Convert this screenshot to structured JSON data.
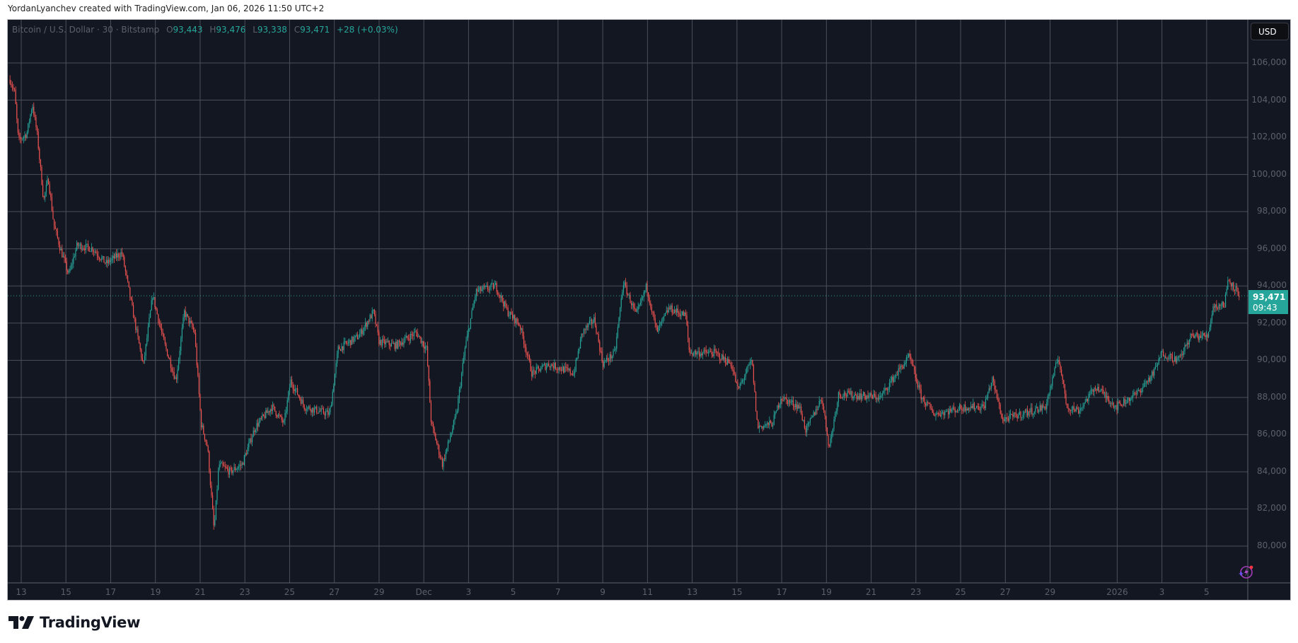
{
  "credit": "YordanLyanchev created with TradingView.com, Jan 06, 2026 11:50 UTC+2",
  "legend": {
    "symbol": "Bitcoin / U.S. Dollar · 30 · Bitstamp",
    "o_label": "O",
    "o": "93,443",
    "h_label": "H",
    "h": "93,476",
    "l_label": "L",
    "l": "93,338",
    "c_label": "C",
    "c": "93,471",
    "change": "+28 (+0.03%)"
  },
  "currency_button": "USD",
  "last_price": {
    "price": "93,471",
    "countdown": "09:43"
  },
  "logo_text": "TradingView",
  "colors": {
    "background": "#131722",
    "up": "#26a69a",
    "down": "#ef5350",
    "grid": "#4b4f5a",
    "axis_text": "#5d606b"
  },
  "icons": {
    "alert": "lightning-bolt-sparkle-icon",
    "logo": "tradingview-logo-icon"
  },
  "chart_data": {
    "type": "candlestick",
    "interval": "30",
    "grid": true,
    "ylim": [
      79000,
      107000
    ],
    "y_ticks": [
      "106,000",
      "104,000",
      "102,000",
      "100,000",
      "98,000",
      "96,000",
      "94,000",
      "92,000",
      "90,000",
      "88,000",
      "86,000",
      "84,000",
      "82,000",
      "80,000"
    ],
    "x_ticks": [
      "13",
      "15",
      "17",
      "19",
      "21",
      "23",
      "25",
      "27",
      "29",
      "Dec",
      "3",
      "5",
      "7",
      "9",
      "11",
      "13",
      "15",
      "17",
      "19",
      "21",
      "23",
      "25",
      "27",
      "29",
      "2026",
      "3",
      "5"
    ],
    "x_tick_dates": [
      "2025-11-13",
      "2025-11-15",
      "2025-11-17",
      "2025-11-19",
      "2025-11-21",
      "2025-11-23",
      "2025-11-25",
      "2025-11-27",
      "2025-11-29",
      "2025-12-01",
      "2025-12-03",
      "2025-12-05",
      "2025-12-07",
      "2025-12-09",
      "2025-12-11",
      "2025-12-13",
      "2025-12-15",
      "2025-12-17",
      "2025-12-19",
      "2025-12-21",
      "2025-12-23",
      "2025-12-25",
      "2025-12-27",
      "2025-12-29",
      "2026-01-01",
      "2026-01-03",
      "2026-01-05"
    ],
    "approx_close_path": [
      [
        "2025-11-12T12:00",
        105100
      ],
      [
        "2025-11-12T17:00",
        104400
      ],
      [
        "2025-11-12T21:00",
        101800
      ],
      [
        "2025-11-13T06:00",
        102200
      ],
      [
        "2025-11-13T12:00",
        103800
      ],
      [
        "2025-11-13T17:00",
        102200
      ],
      [
        "2025-11-14T00:00",
        98600
      ],
      [
        "2025-11-14T05:00",
        99800
      ],
      [
        "2025-11-14T11:00",
        97300
      ],
      [
        "2025-11-14T18:00",
        96000
      ],
      [
        "2025-11-15T03:00",
        94600
      ],
      [
        "2025-11-15T12:00",
        96200
      ],
      [
        "2025-11-16T05:00",
        96000
      ],
      [
        "2025-11-16T19:00",
        95200
      ],
      [
        "2025-11-17T12:00",
        95800
      ],
      [
        "2025-11-18T02:00",
        92000
      ],
      [
        "2025-11-18T11:00",
        89700
      ],
      [
        "2025-11-18T21:00",
        93500
      ],
      [
        "2025-11-19T09:00",
        91000
      ],
      [
        "2025-11-19T22:00",
        88900
      ],
      [
        "2025-11-20T07:00",
        92600
      ],
      [
        "2025-11-20T18:00",
        91500
      ],
      [
        "2025-11-21T01:00",
        86600
      ],
      [
        "2025-11-21T08:00",
        85300
      ],
      [
        "2025-11-21T15:00",
        80800
      ],
      [
        "2025-11-21T20:00",
        84400
      ],
      [
        "2025-11-22T08:00",
        84000
      ],
      [
        "2025-11-22T21:00",
        84400
      ],
      [
        "2025-11-23T11:00",
        86400
      ],
      [
        "2025-11-24T05:00",
        87500
      ],
      [
        "2025-11-24T18:00",
        86600
      ],
      [
        "2025-11-25T01:00",
        88900
      ],
      [
        "2025-11-25T16:00",
        87500
      ],
      [
        "2025-11-26T19:00",
        87100
      ],
      [
        "2025-11-27T04:00",
        90600
      ],
      [
        "2025-11-28T02:00",
        91300
      ],
      [
        "2025-11-28T18:00",
        92600
      ],
      [
        "2025-11-29T00:00",
        91000
      ],
      [
        "2025-11-29T18:00",
        90800
      ],
      [
        "2025-11-30T16:00",
        91500
      ],
      [
        "2025-12-01T03:00",
        90600
      ],
      [
        "2025-12-01T08:00",
        86600
      ],
      [
        "2025-12-01T20:00",
        84400
      ],
      [
        "2025-12-02T11:00",
        87100
      ],
      [
        "2025-12-02T20:00",
        90600
      ],
      [
        "2025-12-03T08:00",
        93700
      ],
      [
        "2025-12-04T05:00",
        94000
      ],
      [
        "2025-12-04T18:00",
        92600
      ],
      [
        "2025-12-05T07:00",
        91900
      ],
      [
        "2025-12-05T20:00",
        89300
      ],
      [
        "2025-12-06T14:00",
        89800
      ],
      [
        "2025-12-07T17:00",
        89300
      ],
      [
        "2025-12-08T02:00",
        91500
      ],
      [
        "2025-12-08T15:00",
        92200
      ],
      [
        "2025-12-09T00:00",
        89800
      ],
      [
        "2025-12-09T13:00",
        90400
      ],
      [
        "2025-12-09T22:00",
        94200
      ],
      [
        "2025-12-10T12:00",
        92400
      ],
      [
        "2025-12-10T23:00",
        94000
      ],
      [
        "2025-12-11T10:00",
        91500
      ],
      [
        "2025-12-11T23:00",
        92800
      ],
      [
        "2025-12-12T17:00",
        92400
      ],
      [
        "2025-12-12T21:00",
        90400
      ],
      [
        "2025-12-14T00:00",
        90400
      ],
      [
        "2025-12-14T18:00",
        89800
      ],
      [
        "2025-12-15T01:00",
        88400
      ],
      [
        "2025-12-15T16:00",
        90000
      ],
      [
        "2025-12-15T22:00",
        86400
      ],
      [
        "2025-12-16T14:00",
        86600
      ],
      [
        "2025-12-16T23:00",
        88000
      ],
      [
        "2025-12-17T19:00",
        87500
      ],
      [
        "2025-12-18T02:00",
        86200
      ],
      [
        "2025-12-18T19:00",
        88000
      ],
      [
        "2025-12-19T03:00",
        85300
      ],
      [
        "2025-12-19T13:00",
        88200
      ],
      [
        "2025-12-21T10:00",
        88000
      ],
      [
        "2025-12-21T23:00",
        89000
      ],
      [
        "2025-12-22T17:00",
        90200
      ],
      [
        "2025-12-23T06:00",
        88000
      ],
      [
        "2025-12-23T20:00",
        87100
      ],
      [
        "2025-12-25T07:00",
        87500
      ],
      [
        "2025-12-26T01:00",
        87500
      ],
      [
        "2025-12-26T10:00",
        89000
      ],
      [
        "2025-12-26T21:00",
        86800
      ],
      [
        "2025-12-28T19:00",
        87500
      ],
      [
        "2025-12-29T09:00",
        90200
      ],
      [
        "2025-12-29T18:00",
        87500
      ],
      [
        "2025-12-30T07:00",
        87300
      ],
      [
        "2025-12-31T01:00",
        88600
      ],
      [
        "2025-12-31T23:00",
        87500
      ],
      [
        "2026-01-01T21:00",
        88200
      ],
      [
        "2026-01-02T15:00",
        89300
      ],
      [
        "2026-01-03T00:00",
        90400
      ],
      [
        "2026-01-03T18:00",
        90000
      ],
      [
        "2026-01-04T07:00",
        91300
      ],
      [
        "2026-01-05T01:00",
        91300
      ],
      [
        "2026-01-05T07:00",
        92900
      ],
      [
        "2026-01-05T19:00",
        93000
      ],
      [
        "2026-01-05T23:00",
        94400
      ],
      [
        "2026-01-06T12:00",
        93471
      ]
    ],
    "last_price": 93471
  }
}
